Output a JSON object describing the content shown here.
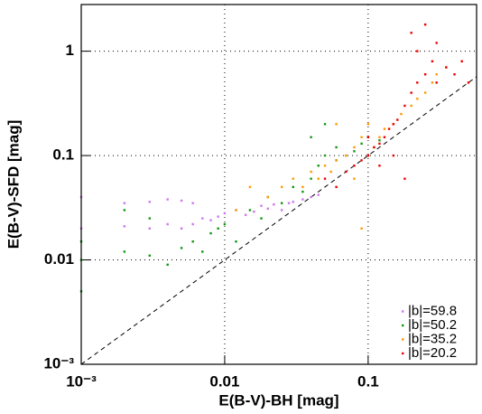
{
  "chart_data": {
    "type": "scatter",
    "xlabel": "E(B-V)-BH [mag]",
    "ylabel": "E(B-V)-SFD [mag]",
    "xscale": "log",
    "yscale": "log",
    "grid": true,
    "identity_line": true,
    "legend": "lower right",
    "xlim": [
      0.001,
      0.57
    ],
    "ylim": [
      0.001,
      2.8
    ],
    "xticks": [
      {
        "value": 0.001,
        "label": "10⁻³"
      },
      0.01,
      0.1
    ],
    "yticks": [
      {
        "value": 0.001,
        "label": "10⁻³"
      },
      0.01,
      0.1,
      1
    ],
    "series": [
      {
        "name": "|b|=59.8",
        "color": "#cc77ee",
        "x": [
          0.001,
          0.001,
          0.002,
          0.002,
          0.003,
          0.003,
          0.004,
          0.004,
          0.005,
          0.005,
          0.006,
          0.006,
          0.007,
          0.008,
          0.009,
          0.01,
          0.012,
          0.014,
          0.016,
          0.018,
          0.02,
          0.022,
          0.025,
          0.028,
          0.03,
          0.035,
          0.04,
          0.045
        ],
        "values": [
          0.02,
          0.04,
          0.021,
          0.035,
          0.02,
          0.036,
          0.022,
          0.038,
          0.02,
          0.037,
          0.022,
          0.035,
          0.025,
          0.024,
          0.026,
          0.028,
          0.03,
          0.027,
          0.029,
          0.033,
          0.031,
          0.034,
          0.03,
          0.035,
          0.036,
          0.038,
          0.04,
          0.042
        ]
      },
      {
        "name": "|b|=50.2",
        "color": "#119911",
        "x": [
          0.001,
          0.001,
          0.001,
          0.002,
          0.002,
          0.003,
          0.003,
          0.004,
          0.005,
          0.006,
          0.007,
          0.008,
          0.009,
          0.01,
          0.012,
          0.015,
          0.018,
          0.02,
          0.025,
          0.03,
          0.035,
          0.04,
          0.04,
          0.045,
          0.05,
          0.05,
          0.06,
          0.06,
          0.07,
          0.08,
          0.09,
          0.1,
          0.12
        ],
        "values": [
          0.01,
          0.015,
          0.005,
          0.012,
          0.03,
          0.011,
          0.025,
          0.009,
          0.013,
          0.015,
          0.012,
          0.018,
          0.02,
          0.022,
          0.015,
          0.03,
          0.025,
          0.04,
          0.035,
          0.05,
          0.045,
          0.06,
          0.15,
          0.08,
          0.1,
          0.2,
          0.09,
          0.12,
          0.1,
          0.11,
          0.13,
          0.15,
          0.14
        ]
      },
      {
        "name": "|b|=35.2",
        "color": "#ff9900",
        "x": [
          0.012,
          0.015,
          0.02,
          0.025,
          0.03,
          0.035,
          0.04,
          0.045,
          0.05,
          0.055,
          0.06,
          0.07,
          0.08,
          0.08,
          0.09,
          0.1,
          0.1,
          0.11,
          0.12,
          0.13,
          0.15,
          0.17,
          0.2,
          0.22,
          0.25,
          0.28,
          0.3,
          0.35,
          0.09,
          0.06
        ],
        "values": [
          0.03,
          0.05,
          0.04,
          0.05,
          0.06,
          0.05,
          0.07,
          0.06,
          0.08,
          0.07,
          0.09,
          0.1,
          0.12,
          0.06,
          0.15,
          0.1,
          0.2,
          0.12,
          0.15,
          0.18,
          0.2,
          0.25,
          0.3,
          0.35,
          0.4,
          0.5,
          0.6,
          0.7,
          0.02,
          0.2
        ]
      },
      {
        "name": "|b|=20.2",
        "color": "#ee0000",
        "x": [
          0.05,
          0.06,
          0.07,
          0.08,
          0.09,
          0.1,
          0.1,
          0.11,
          0.12,
          0.13,
          0.14,
          0.15,
          0.16,
          0.18,
          0.2,
          0.2,
          0.22,
          0.22,
          0.25,
          0.25,
          0.28,
          0.3,
          0.3,
          0.35,
          0.4,
          0.45,
          0.5,
          0.18,
          0.12,
          0.15
        ],
        "values": [
          0.06,
          0.05,
          0.07,
          0.08,
          0.09,
          0.1,
          0.15,
          0.12,
          0.13,
          0.15,
          0.18,
          0.2,
          0.22,
          0.3,
          0.4,
          1.5,
          0.5,
          1.0,
          0.6,
          1.8,
          0.8,
          0.5,
          1.2,
          0.7,
          0.6,
          0.8,
          0.5,
          0.06,
          0.08,
          0.1
        ]
      }
    ]
  }
}
